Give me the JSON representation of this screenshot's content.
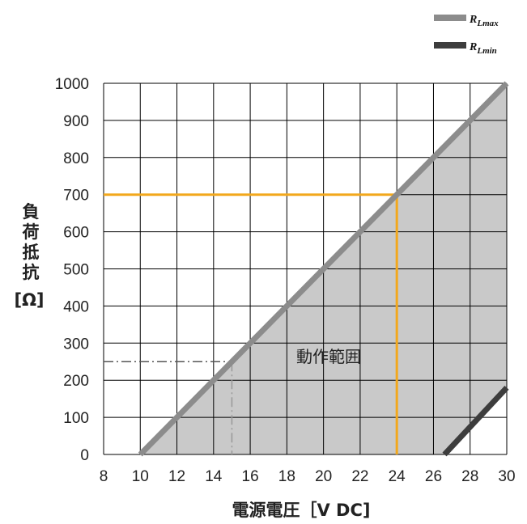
{
  "chart_data": {
    "type": "line",
    "xlabel": "電源電圧［V DC]",
    "ylabel_lines": [
      "負",
      "荷",
      "抵",
      "抗",
      "[Ω]"
    ],
    "xlim": [
      8,
      30
    ],
    "ylim": [
      0,
      1000
    ],
    "x_ticks": [
      8,
      10,
      12,
      14,
      16,
      18,
      20,
      22,
      24,
      26,
      28,
      30
    ],
    "y_ticks": [
      0,
      100,
      200,
      300,
      400,
      500,
      600,
      700,
      800,
      900,
      1000
    ],
    "grid": true,
    "legend_position": "top-right",
    "series": [
      {
        "name": "RLmax",
        "name_main": "R",
        "name_sub": "Lmax",
        "color": "#8c8c8c",
        "x": [
          10,
          30
        ],
        "y": [
          0,
          1000
        ]
      },
      {
        "name": "RLmin",
        "name_main": "R",
        "name_sub": "Lmin",
        "color": "#3d3d3d",
        "x": [
          26.6,
          30
        ],
        "y": [
          0,
          180
        ]
      }
    ],
    "operating_region": {
      "label": "動作範囲",
      "color": "#c9c9c9",
      "polygon": [
        [
          10,
          0
        ],
        [
          30,
          1000
        ],
        [
          30,
          180
        ],
        [
          26.6,
          0
        ]
      ]
    },
    "reference_lines": [
      {
        "style": "solid",
        "color": "#f2a81d",
        "points": [
          [
            8,
            700
          ],
          [
            24,
            700
          ],
          [
            24,
            0
          ]
        ]
      },
      {
        "style": "dashdot",
        "color": "#555555",
        "points": [
          [
            8,
            250
          ],
          [
            15,
            250
          ]
        ]
      },
      {
        "style": "dashdot",
        "color": "#999999",
        "points": [
          [
            15,
            250
          ],
          [
            15,
            0
          ]
        ]
      }
    ],
    "colors": {
      "grid": "#000000",
      "highlight": "#f2a81d"
    }
  }
}
